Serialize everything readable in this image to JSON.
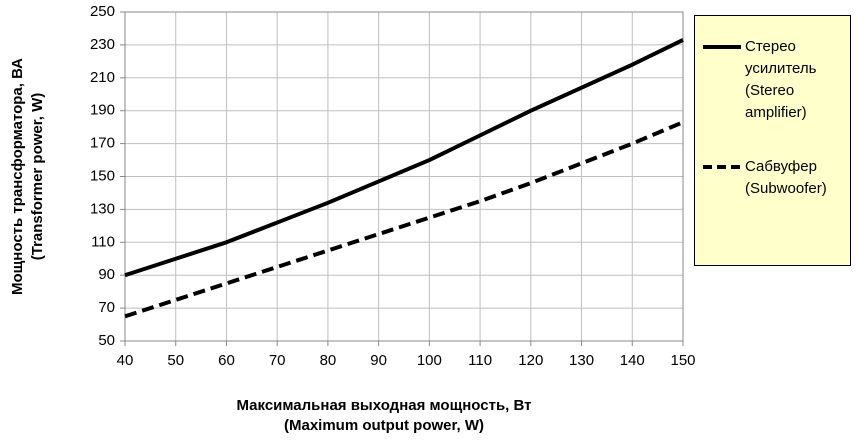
{
  "chart_data": {
    "type": "line",
    "x_label": [
      "Максимальная выходная мощность, Вт",
      "(Maximum output power, W)"
    ],
    "y_label": [
      "Мощность трансформатора, ВА",
      "(Transformer power, W)"
    ],
    "x": [
      40,
      50,
      60,
      70,
      80,
      90,
      100,
      110,
      120,
      130,
      140,
      150
    ],
    "series": [
      {
        "name": "Стерео усилитель (Stereo amplifier)",
        "color": "#000000",
        "line_style": "solid",
        "values": [
          90,
          100,
          110,
          122,
          134,
          147,
          160,
          175,
          190,
          204,
          218,
          233
        ]
      },
      {
        "name": "Сабвуфер (Subwoofer)",
        "color": "#000000",
        "line_style": "dashed",
        "values": [
          65,
          75,
          85,
          95,
          105,
          115,
          125,
          135,
          146,
          158,
          170,
          183
        ]
      }
    ],
    "xlim": [
      40,
      150
    ],
    "xticks": [
      40,
      50,
      60,
      70,
      80,
      90,
      100,
      110,
      120,
      130,
      140,
      150
    ],
    "ylim": [
      50,
      250
    ],
    "yticks": [
      50,
      70,
      90,
      110,
      130,
      150,
      170,
      190,
      210,
      230,
      250
    ],
    "grid": true,
    "legend": "right"
  }
}
